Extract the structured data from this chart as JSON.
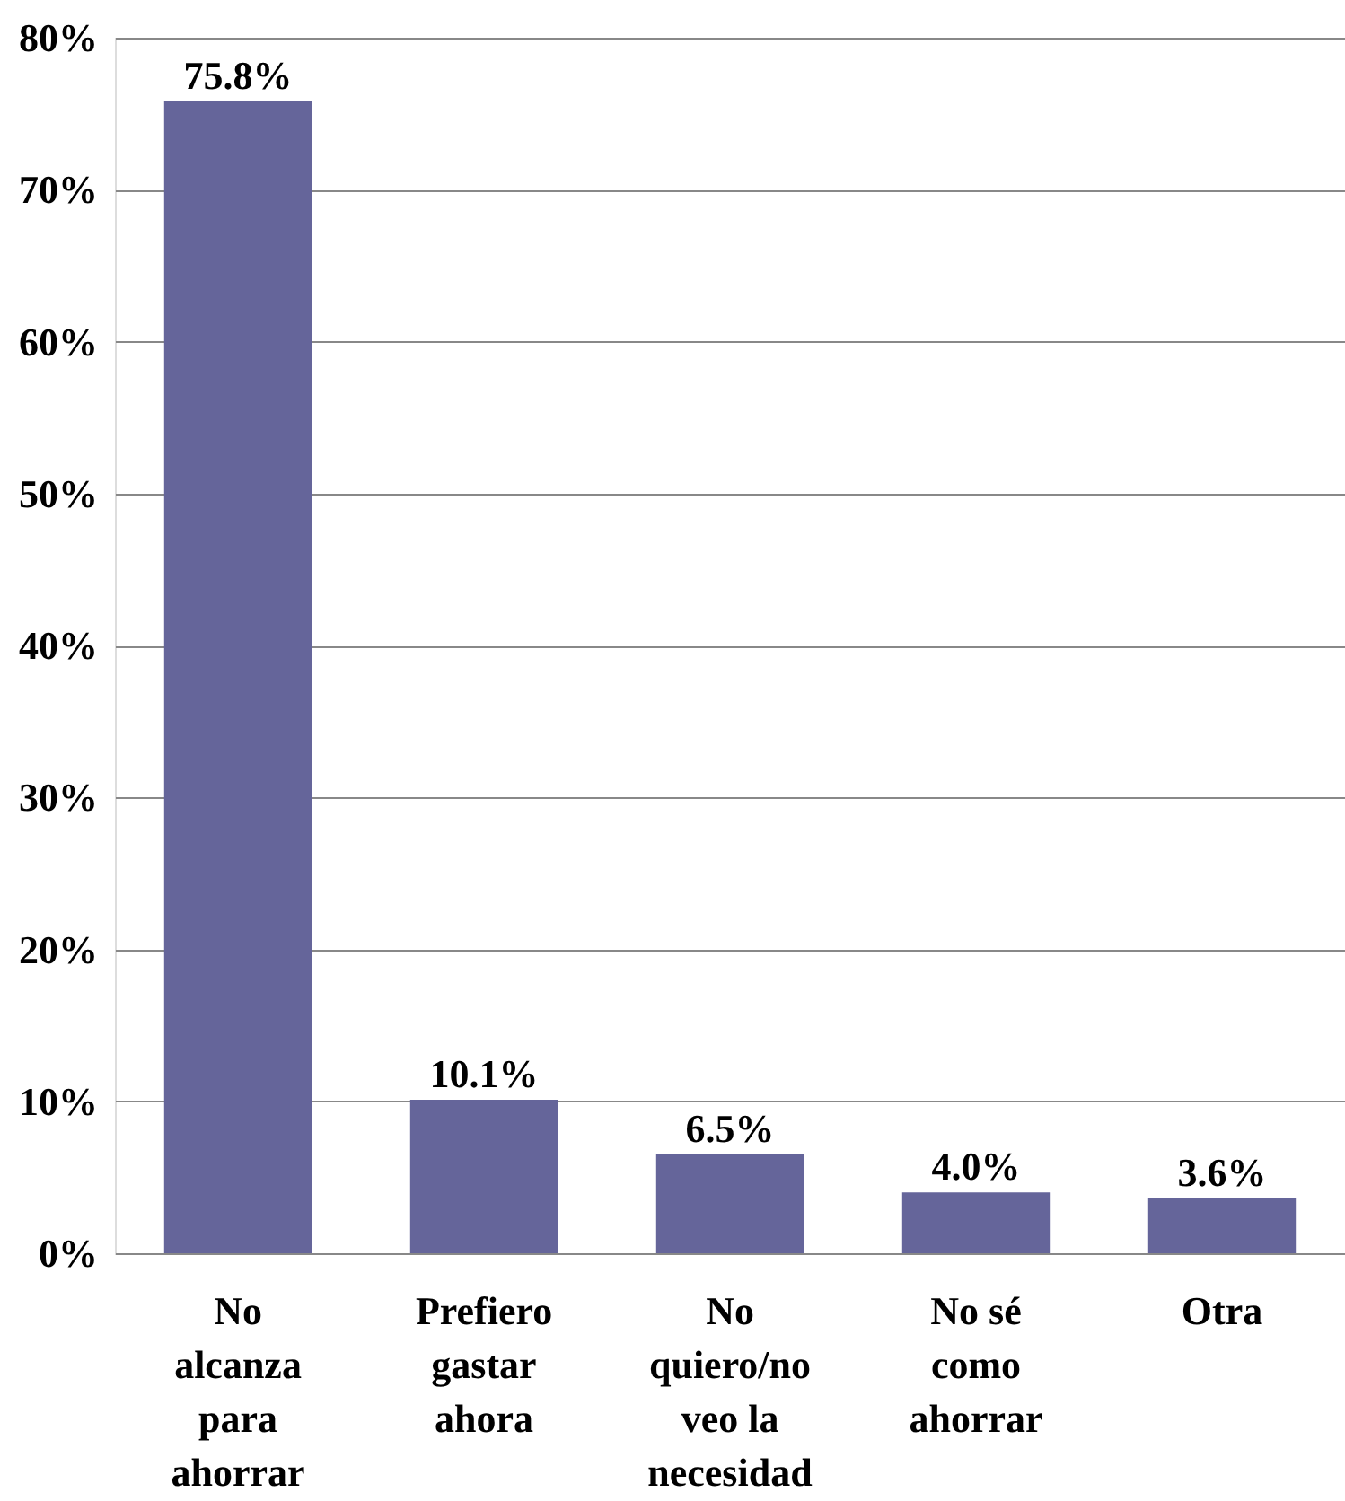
{
  "chart_data": {
    "type": "bar",
    "categories": [
      "No alcanza para ahorrar",
      "Prefiero gastar ahora",
      "No quiero/no veo la necesidad",
      "No sé como ahorrar",
      "Otra"
    ],
    "values": [
      75.8,
      10.1,
      6.5,
      4.0,
      3.6
    ],
    "value_labels": [
      "75.8%",
      "10.1%",
      "6.5%",
      "4.0%",
      "3.6%"
    ],
    "color": "#65659a",
    "ylim": [
      0,
      80
    ],
    "yticks": [
      {
        "value": 0,
        "label": "0%"
      },
      {
        "value": 10,
        "label": "10%"
      },
      {
        "value": 20,
        "label": "20%"
      },
      {
        "value": 30,
        "label": "30%"
      },
      {
        "value": 40,
        "label": "40%"
      },
      {
        "value": 50,
        "label": "50%"
      },
      {
        "value": 60,
        "label": "60%"
      },
      {
        "value": 70,
        "label": "70%"
      },
      {
        "value": 80,
        "label": "80%"
      }
    ],
    "grid": "y"
  }
}
